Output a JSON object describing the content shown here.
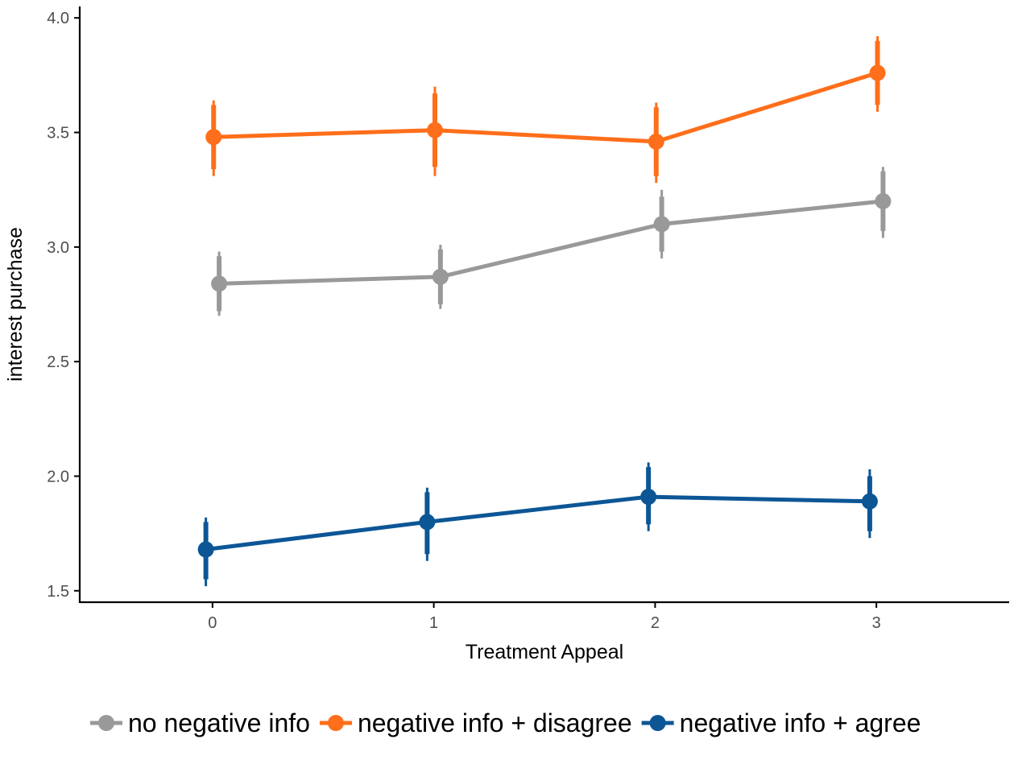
{
  "chart_data": {
    "type": "line",
    "title": "",
    "xlabel": "Treatment Appeal",
    "ylabel": "interest purchase",
    "x": [
      0,
      1,
      2,
      3
    ],
    "x_tick_labels": [
      "0",
      "1",
      "2",
      "3"
    ],
    "xlim": [
      -0.6,
      3.6
    ],
    "ylim": [
      1.45,
      4.05
    ],
    "y_ticks": [
      1.5,
      2.0,
      2.5,
      3.0,
      3.5,
      4.0
    ],
    "y_tick_labels": [
      "1.5",
      "2.0",
      "2.5",
      "3.0",
      "3.5",
      "4.0"
    ],
    "grid": false,
    "legend_position": "bottom",
    "series": [
      {
        "name": "no negative info",
        "color": "#999999",
        "dodge": 0.03,
        "values": [
          2.84,
          2.87,
          3.1,
          3.2
        ],
        "inner": [
          [
            2.72,
            2.96
          ],
          [
            2.75,
            2.99
          ],
          [
            2.98,
            3.22
          ],
          [
            3.07,
            3.33
          ]
        ],
        "outer": [
          [
            2.7,
            2.98
          ],
          [
            2.73,
            3.01
          ],
          [
            2.95,
            3.25
          ],
          [
            3.04,
            3.35
          ]
        ]
      },
      {
        "name": "negative info + disagree",
        "color": "#FF6E1A",
        "dodge": 0.005,
        "values": [
          3.48,
          3.51,
          3.46,
          3.76
        ],
        "inner": [
          [
            3.34,
            3.62
          ],
          [
            3.35,
            3.67
          ],
          [
            3.31,
            3.61
          ],
          [
            3.62,
            3.9
          ]
        ],
        "outer": [
          [
            3.31,
            3.64
          ],
          [
            3.31,
            3.7
          ],
          [
            3.28,
            3.63
          ],
          [
            3.59,
            3.92
          ]
        ]
      },
      {
        "name": "negative info + agree",
        "color": "#0C5696",
        "dodge": -0.03,
        "values": [
          1.68,
          1.8,
          1.91,
          1.89
        ],
        "inner": [
          [
            1.55,
            1.8
          ],
          [
            1.66,
            1.93
          ],
          [
            1.79,
            2.04
          ],
          [
            1.76,
            2.0
          ]
        ],
        "outer": [
          [
            1.52,
            1.82
          ],
          [
            1.63,
            1.95
          ],
          [
            1.76,
            2.06
          ],
          [
            1.73,
            2.03
          ]
        ]
      }
    ]
  }
}
